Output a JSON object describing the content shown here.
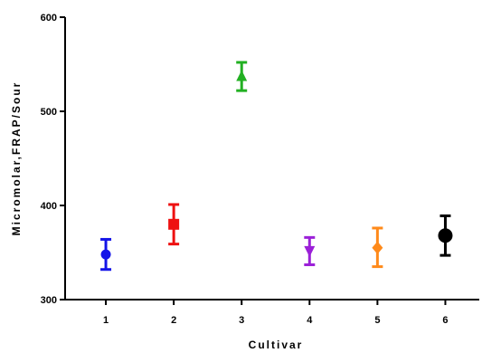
{
  "chart_data": {
    "type": "scatter",
    "title": "",
    "xlabel": "Cultivar",
    "ylabel": "Micromolar,FRAP/Sour",
    "xlim": [
      0.4,
      6.5
    ],
    "ylim": [
      300,
      600
    ],
    "x_ticks": [
      "1",
      "2",
      "3",
      "4",
      "5",
      "6"
    ],
    "y_ticks": [
      "300",
      "400",
      "500",
      "600"
    ],
    "grid": false,
    "legend": "none",
    "series": [
      {
        "x": 1,
        "y": 348,
        "err_low": 332,
        "err_high": 364,
        "marker": "circle",
        "color": "#1515e8"
      },
      {
        "x": 2,
        "y": 380,
        "err_low": 359,
        "err_high": 401,
        "marker": "square",
        "color": "#ee1111"
      },
      {
        "x": 3,
        "y": 537,
        "err_low": 522,
        "err_high": 552,
        "marker": "triangle-up",
        "color": "#22b022"
      },
      {
        "x": 4,
        "y": 352,
        "err_low": 337,
        "err_high": 366,
        "marker": "triangle-down",
        "color": "#9b20d8"
      },
      {
        "x": 5,
        "y": 355,
        "err_low": 335,
        "err_high": 376,
        "marker": "diamond",
        "color": "#ff8a1a"
      },
      {
        "x": 6,
        "y": 368,
        "err_low": 347,
        "err_high": 389,
        "marker": "circle-large",
        "color": "#000000"
      }
    ]
  }
}
